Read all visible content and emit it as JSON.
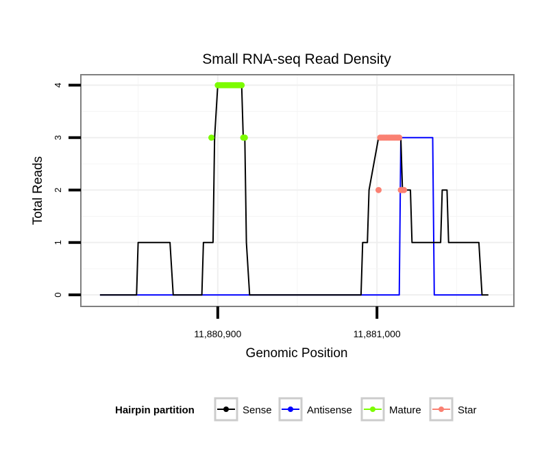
{
  "chart_data": {
    "type": "line",
    "title": "Small RNA-seq Read Density",
    "xlabel": "Genomic Position",
    "ylabel": "Total Reads",
    "xlim": [
      11880814,
      11881086
    ],
    "ylim": [
      -0.22,
      4.2
    ],
    "x_ticks": [
      11880900,
      11881000
    ],
    "x_tick_labels": [
      "11,880,900",
      "11,881,000"
    ],
    "y_ticks": [
      0,
      1,
      2,
      3,
      4
    ],
    "y_tick_labels": [
      "0",
      "1",
      "2",
      "3",
      "4"
    ],
    "grid": true,
    "legend": {
      "title": "Hairpin partition",
      "position": "bottom",
      "entries": [
        {
          "name": "Sense",
          "color": "#000000"
        },
        {
          "name": "Antisense",
          "color": "#0000ff"
        },
        {
          "name": "Mature",
          "color": "#7cfc00"
        },
        {
          "name": "Star",
          "color": "#fa8072"
        }
      ]
    },
    "series": [
      {
        "name": "Sense",
        "color": "#000000",
        "kind": "line",
        "x": [
          11880826,
          11880849,
          11880850,
          11880870,
          11880872,
          11880890,
          11880891,
          11880897,
          11880898,
          11880900,
          11880915,
          11880916,
          11880917,
          11880918,
          11880920,
          11880990,
          11880991,
          11880994,
          11880995,
          11881001,
          11881002,
          11881015,
          11881016,
          11881021,
          11881022,
          11881040,
          11881041,
          11881044,
          11881045,
          11881064,
          11881066,
          11881070
        ],
        "y": [
          0,
          0,
          1,
          1,
          0,
          0,
          1,
          1,
          3,
          4,
          4,
          3,
          3,
          1,
          0,
          0,
          1,
          1,
          2,
          3,
          3,
          3,
          2,
          2,
          1,
          1,
          2,
          2,
          1,
          1,
          0,
          0
        ]
      },
      {
        "name": "Antisense",
        "color": "#0000ff",
        "kind": "line",
        "x": [
          11880826,
          11881014,
          11881015,
          11881035,
          11881036,
          11881066
        ],
        "y": [
          0,
          0,
          3,
          3,
          0,
          0
        ]
      },
      {
        "name": "Mature",
        "color": "#7cfc00",
        "kind": "points",
        "x": [
          11880896,
          11880900,
          11880901,
          11880902,
          11880903,
          11880904,
          11880905,
          11880906,
          11880907,
          11880908,
          11880909,
          11880910,
          11880911,
          11880912,
          11880913,
          11880914,
          11880915,
          11880916,
          11880917
        ],
        "y": [
          3,
          4,
          4,
          4,
          4,
          4,
          4,
          4,
          4,
          4,
          4,
          4,
          4,
          4,
          4,
          4,
          4,
          3,
          3
        ]
      },
      {
        "name": "Star",
        "color": "#fa8072",
        "kind": "points",
        "x": [
          11881001,
          11881002,
          11881003,
          11881004,
          11881005,
          11881006,
          11881007,
          11881008,
          11881009,
          11881010,
          11881011,
          11881012,
          11881013,
          11881014,
          11881015,
          11881016,
          11881017
        ],
        "y": [
          2,
          3,
          3,
          3,
          3,
          3,
          3,
          3,
          3,
          3,
          3,
          3,
          3,
          3,
          2,
          2,
          2
        ]
      }
    ]
  }
}
